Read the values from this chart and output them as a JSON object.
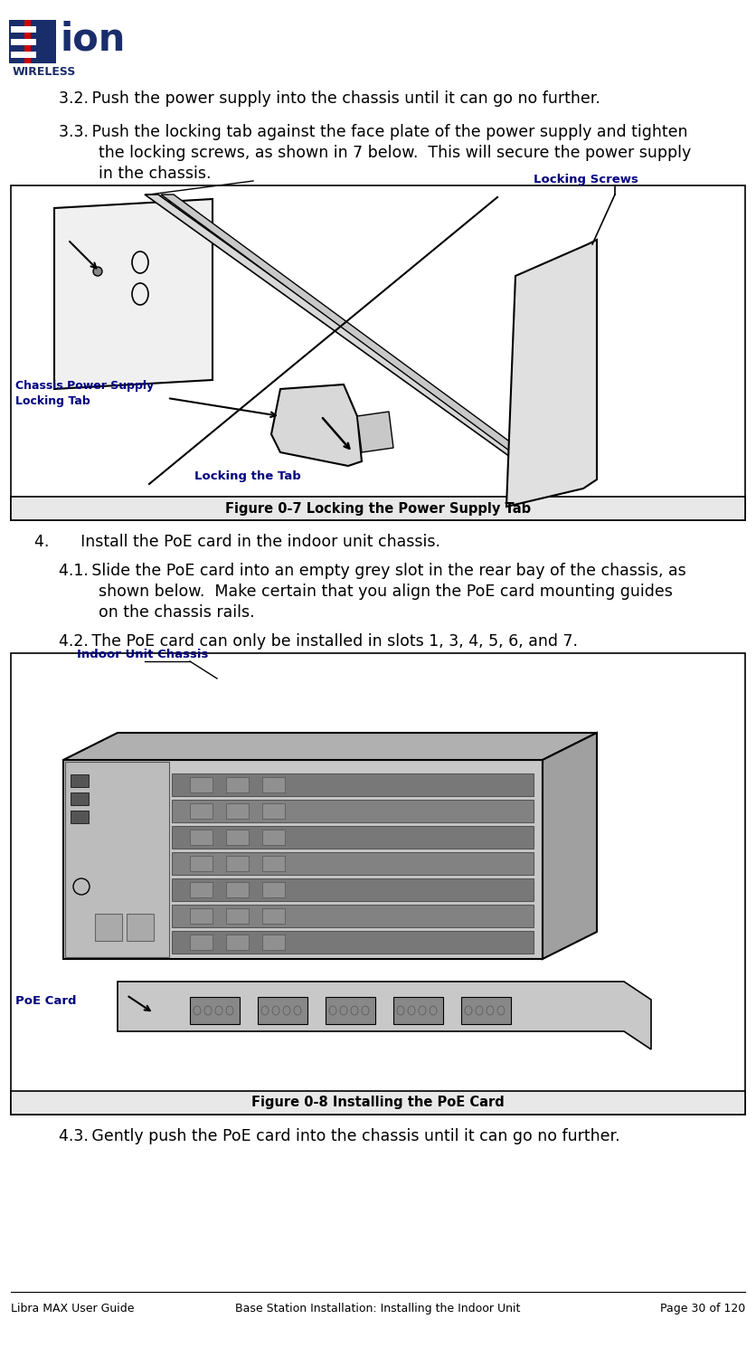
{
  "bg_color": "#ffffff",
  "logo_color_dark": "#1a2d6b",
  "logo_color_red": "#cc0000",
  "text_32": "3.2. Push the power supply into the chassis until it can go no further.",
  "text_33_line1": "3.3. Push the locking tab against the face plate of the power supply and tighten",
  "text_33_line2": "        the locking screws, as shown in 7 below.  This will secure the power supply",
  "text_33_line3": "        in the chassis.",
  "fig7_label": "Figure 0-7 Locking the Power Supply Tab",
  "fig7_ann1": "Locking Screws",
  "fig7_ann2_line1": "Chassis Power Supply",
  "fig7_ann2_line2": "Locking Tab",
  "fig7_ann3": "Locking the Tab",
  "text_4": "4.  Install the PoE card in the indoor unit chassis.",
  "text_41_line1": "4.1. Slide the PoE card into an empty grey slot in the rear bay of the chassis, as",
  "text_41_line2": "        shown below.  Make certain that you align the PoE card mounting guides",
  "text_41_line3": "        on the chassis rails.",
  "text_42": "4.2. The PoE card can only be installed in slots 1, 3, 4, 5, 6, and 7.",
  "fig8_label": "Figure 0-8 Installing the PoE Card",
  "fig8_ann1": "Indoor Unit Chassis",
  "fig8_ann2": "PoE Card",
  "text_43": "4.3. Gently push the PoE card into the chassis until it can go no further.",
  "footer_left": "Libra MAX User Guide",
  "footer_center": "Base Station Installation: Installing the Indoor Unit",
  "footer_right": "Page 30 of 120",
  "text_color": "#000000",
  "ann_color": "#000080",
  "fig_border": "#000000",
  "fig_caption_bg": "#e8e8e8"
}
